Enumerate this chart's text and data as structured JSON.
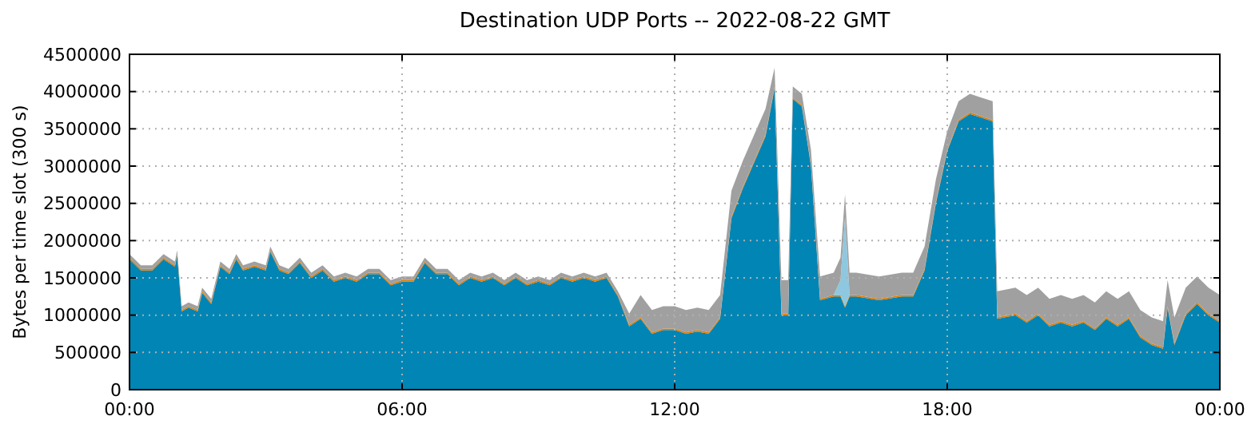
{
  "chart_data": {
    "type": "area",
    "stacked": true,
    "title": "Destination UDP Ports -- 2022-08-22 GMT",
    "ylabel": "Bytes per time slot (300 s)",
    "x": [
      0,
      0.25,
      0.5,
      0.75,
      1,
      1.05,
      1.15,
      1.3,
      1.5,
      1.6,
      1.8,
      2,
      2.2,
      2.35,
      2.5,
      2.75,
      3,
      3.1,
      3.3,
      3.5,
      3.75,
      4,
      4.25,
      4.5,
      4.75,
      5,
      5.25,
      5.5,
      5.75,
      6,
      6.25,
      6.5,
      6.75,
      7,
      7.25,
      7.5,
      7.75,
      8,
      8.25,
      8.5,
      8.75,
      9,
      9.25,
      9.5,
      9.75,
      10,
      10.25,
      10.5,
      10.75,
      11,
      11.25,
      11.5,
      11.75,
      12,
      12.25,
      12.5,
      12.75,
      13,
      13.25,
      13.5,
      13.75,
      14,
      14.2,
      14.35,
      14.5,
      14.6,
      14.8,
      15,
      15.2,
      15.5,
      15.65,
      15.75,
      15.85,
      16,
      16.5,
      17,
      17.25,
      17.5,
      17.75,
      18,
      18.25,
      18.5,
      18.75,
      19,
      19.1,
      19.5,
      19.75,
      20,
      20.25,
      20.5,
      20.75,
      21,
      21.25,
      21.5,
      21.75,
      22,
      22.25,
      22.5,
      22.75,
      22.85,
      23,
      23.25,
      23.5,
      23.75,
      24
    ],
    "series": [
      {
        "color": "#0085b5",
        "values": [
          1750000,
          1600000,
          1600000,
          1750000,
          1650000,
          1800000,
          1050000,
          1100000,
          1050000,
          1300000,
          1150000,
          1650000,
          1550000,
          1750000,
          1600000,
          1650000,
          1600000,
          1850000,
          1600000,
          1550000,
          1700000,
          1500000,
          1600000,
          1450000,
          1500000,
          1450000,
          1550000,
          1550000,
          1400000,
          1450000,
          1450000,
          1700000,
          1550000,
          1550000,
          1400000,
          1500000,
          1450000,
          1500000,
          1400000,
          1500000,
          1400000,
          1450000,
          1400000,
          1500000,
          1450000,
          1500000,
          1450000,
          1500000,
          1250000,
          850000,
          950000,
          750000,
          800000,
          800000,
          750000,
          780000,
          750000,
          950000,
          2300000,
          2700000,
          3050000,
          3400000,
          4050000,
          1000000,
          1000000,
          3900000,
          3800000,
          3000000,
          1200000,
          1250000,
          1250000,
          1100000,
          1250000,
          1250000,
          1200000,
          1250000,
          1250000,
          1600000,
          2500000,
          3200000,
          3600000,
          3700000,
          3650000,
          3600000,
          950000,
          1000000,
          900000,
          1000000,
          850000,
          900000,
          850000,
          900000,
          800000,
          950000,
          850000,
          950000,
          700000,
          600000,
          550000,
          1100000,
          600000,
          1000000,
          1150000,
          1000000,
          900000
        ]
      },
      {
        "color": "#e07b00",
        "values": [
          20000,
          20000,
          20000,
          20000,
          20000,
          20000,
          20000,
          20000,
          20000,
          20000,
          20000,
          20000,
          20000,
          20000,
          20000,
          20000,
          20000,
          20000,
          20000,
          20000,
          20000,
          20000,
          20000,
          20000,
          20000,
          20000,
          20000,
          20000,
          20000,
          20000,
          20000,
          20000,
          20000,
          20000,
          20000,
          20000,
          20000,
          20000,
          20000,
          20000,
          20000,
          20000,
          20000,
          20000,
          20000,
          20000,
          20000,
          20000,
          20000,
          20000,
          20000,
          20000,
          20000,
          20000,
          20000,
          20000,
          20000,
          20000,
          20000,
          20000,
          20000,
          20000,
          20000,
          20000,
          20000,
          20000,
          20000,
          20000,
          20000,
          20000,
          20000,
          20000,
          20000,
          20000,
          20000,
          20000,
          20000,
          20000,
          20000,
          20000,
          20000,
          20000,
          20000,
          20000,
          20000,
          20000,
          20000,
          20000,
          20000,
          20000,
          20000,
          20000,
          20000,
          20000,
          20000,
          20000,
          20000,
          20000,
          20000,
          20000,
          20000,
          20000,
          20000,
          20000,
          20000
        ]
      },
      {
        "color": "#8ec8e0",
        "values": [
          null,
          null,
          null,
          null,
          null,
          null,
          null,
          null,
          null,
          null,
          null,
          null,
          null,
          null,
          null,
          null,
          null,
          null,
          null,
          null,
          null,
          null,
          null,
          null,
          null,
          null,
          null,
          null,
          null,
          null,
          null,
          null,
          null,
          null,
          null,
          null,
          null,
          null,
          null,
          null,
          null,
          null,
          null,
          null,
          null,
          null,
          null,
          null,
          null,
          null,
          null,
          null,
          null,
          null,
          null,
          null,
          null,
          null,
          null,
          null,
          null,
          null,
          null,
          null,
          null,
          null,
          null,
          null,
          null,
          0,
          200000,
          1200000,
          0,
          null,
          null,
          null,
          null,
          null,
          null,
          null,
          null,
          null,
          null,
          null,
          null,
          null,
          null,
          null,
          null,
          null,
          null,
          null,
          null,
          null,
          null,
          null,
          null,
          null,
          null,
          null,
          null,
          null,
          null,
          null,
          null
        ]
      },
      {
        "color": "#a0a0a0",
        "values": [
          50000,
          50000,
          50000,
          50000,
          50000,
          50000,
          50000,
          50000,
          50000,
          50000,
          50000,
          50000,
          50000,
          50000,
          50000,
          50000,
          50000,
          50000,
          50000,
          50000,
          50000,
          50000,
          50000,
          50000,
          50000,
          50000,
          50000,
          50000,
          50000,
          50000,
          50000,
          50000,
          50000,
          50000,
          50000,
          50000,
          50000,
          50000,
          50000,
          50000,
          50000,
          50000,
          50000,
          50000,
          50000,
          50000,
          50000,
          50000,
          50000,
          150000,
          300000,
          300000,
          300000,
          300000,
          300000,
          300000,
          300000,
          300000,
          350000,
          350000,
          350000,
          350000,
          250000,
          450000,
          450000,
          150000,
          150000,
          200000,
          300000,
          300000,
          300000,
          300000,
          300000,
          300000,
          300000,
          300000,
          300000,
          300000,
          300000,
          250000,
          250000,
          250000,
          250000,
          250000,
          350000,
          350000,
          350000,
          350000,
          350000,
          350000,
          350000,
          350000,
          350000,
          350000,
          350000,
          350000,
          350000,
          350000,
          350000,
          350000,
          350000,
          350000,
          350000,
          350000,
          350000
        ]
      }
    ],
    "xlim": [
      0,
      24
    ],
    "xticks": [
      {
        "value": 0,
        "label": "00:00"
      },
      {
        "value": 6,
        "label": "06:00"
      },
      {
        "value": 12,
        "label": "12:00"
      },
      {
        "value": 18,
        "label": "18:00"
      },
      {
        "value": 24,
        "label": "00:00"
      }
    ],
    "ylim": [
      0,
      4500000
    ],
    "yticks": [
      0,
      500000,
      1000000,
      1500000,
      2000000,
      2500000,
      3000000,
      3500000,
      4000000,
      4500000
    ],
    "grid": true
  }
}
